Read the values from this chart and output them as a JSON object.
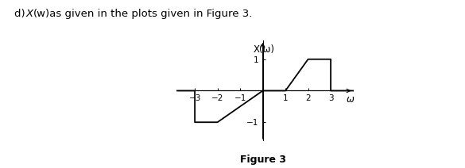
{
  "title_text": "d) X(w) as given in the plots given in Figure 3.",
  "figure_label": "Figure 3",
  "ylabel": "X(ω)",
  "xlabel": "ω",
  "xlim": [
    -3.8,
    4.0
  ],
  "ylim": [
    -1.6,
    1.6
  ],
  "xticks": [
    -3,
    -2,
    -1,
    1,
    2,
    3
  ],
  "yticks": [
    -1,
    1
  ],
  "signal_x": [
    -4.0,
    -3.0,
    -3.0,
    -2.0,
    0.0,
    1.0,
    2.0,
    3.0,
    3.0,
    4.5
  ],
  "signal_y": [
    0.0,
    0.0,
    -1.0,
    -1.0,
    0.0,
    0.0,
    1.0,
    1.0,
    0.0,
    0.0
  ],
  "line_color": "#000000",
  "line_width": 1.3,
  "background_color": "#ffffff",
  "title_fontsize": 9.5,
  "label_fontsize": 8.5,
  "tick_fontsize": 7.5,
  "fig_caption_fontsize": 9
}
